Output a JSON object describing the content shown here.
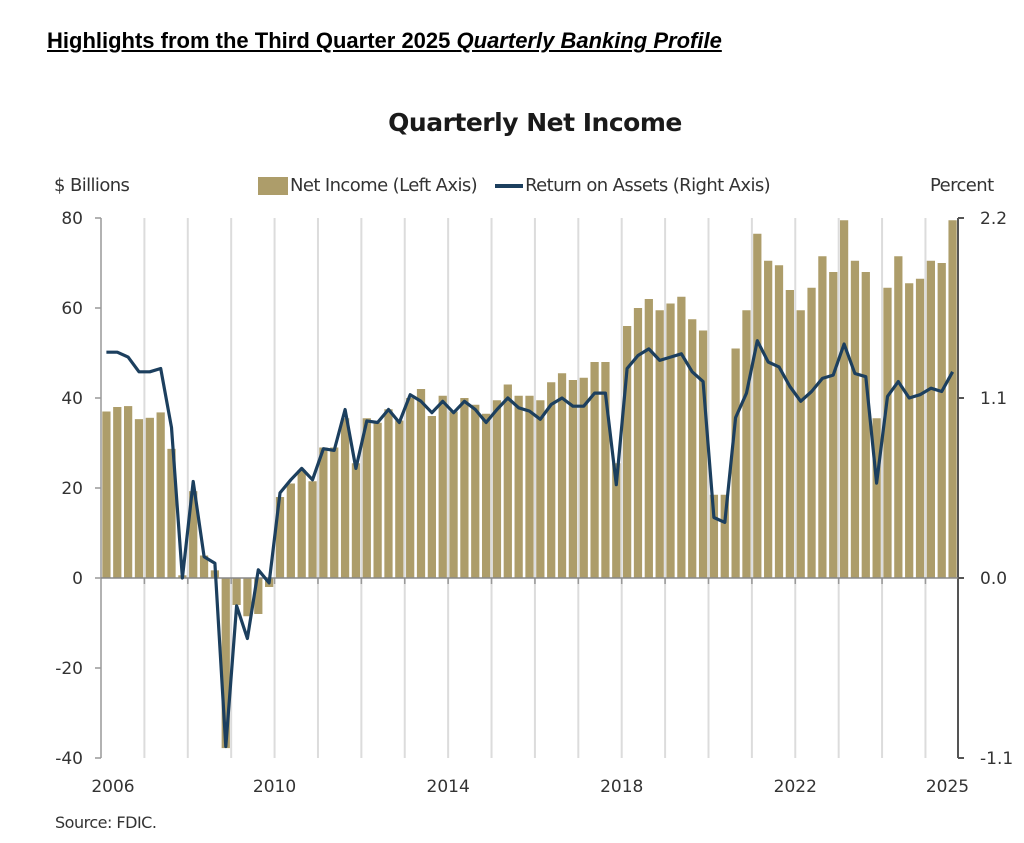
{
  "page": {
    "heading_plain": "Highlights from the Third Quarter 2025 ",
    "heading_italic": "Quarterly Banking Profile",
    "source": "Source: FDIC."
  },
  "chart_data": {
    "type": "bar",
    "title": "Quarterly Net Income",
    "left_axis_label": "$ Billions",
    "right_axis_label": "Percent",
    "legend": [
      {
        "name": "Net Income (Left Axis)",
        "kind": "bar",
        "color": "#ad9d6a"
      },
      {
        "name": "Return on Assets (Right Axis)",
        "kind": "line",
        "color": "#1c3f5e"
      }
    ],
    "legend_position": "top-center",
    "grid": "vertical-yearly",
    "ylim_left": [
      -40,
      80
    ],
    "yticks_left": [
      "80",
      "60",
      "40",
      "20",
      "0",
      "-20",
      "-40"
    ],
    "ylim_right": [
      -1.1,
      2.2
    ],
    "yticks_right": [
      "2.2",
      "1.1",
      "0.0",
      "-1.1"
    ],
    "xtick_labels": [
      {
        "label": "2006",
        "year": 2006
      },
      {
        "label": "2010",
        "year": 2010
      },
      {
        "label": "2014",
        "year": 2014
      },
      {
        "label": "2018",
        "year": 2018
      },
      {
        "label": "2022",
        "year": 2022
      },
      {
        "label": "2025",
        "year": 2025
      }
    ],
    "start_period": "2006Q1",
    "end_period": "2025Q3",
    "series": [
      {
        "name": "Net Income",
        "axis": "left",
        "values": [
          37.0,
          38.0,
          38.2,
          35.3,
          35.6,
          36.8,
          28.7,
          0.6,
          19.3,
          5.0,
          1.7,
          -37.8,
          -6.0,
          -8.5,
          -8.0,
          -2.0,
          18.0,
          21.0,
          24.0,
          21.5,
          29.0,
          29.0,
          35.5,
          25.5,
          35.5,
          34.5,
          37.5,
          35.0,
          40.0,
          42.0,
          36.0,
          40.5,
          37.0,
          40.0,
          38.5,
          36.5,
          39.5,
          43.0,
          40.5,
          40.5,
          39.5,
          43.5,
          45.5,
          44.0,
          44.5,
          48.0,
          48.0,
          25.5,
          56.0,
          60.0,
          62.0,
          59.5,
          61.0,
          62.5,
          57.5,
          55.0,
          18.5,
          18.5,
          51.0,
          59.5,
          76.5,
          70.5,
          69.5,
          64.0,
          59.5,
          64.5,
          71.5,
          68.0,
          79.5,
          70.5,
          68.0,
          35.5,
          64.5,
          71.5,
          65.5,
          66.5,
          70.5,
          70.0,
          79.5
        ]
      },
      {
        "name": "Return on Assets",
        "axis": "right",
        "values": [
          1.38,
          1.38,
          1.35,
          1.26,
          1.26,
          1.28,
          0.92,
          0.0,
          0.59,
          0.13,
          0.09,
          -1.03,
          -0.17,
          -0.37,
          0.05,
          -0.03,
          0.52,
          0.6,
          0.67,
          0.6,
          0.79,
          0.78,
          1.03,
          0.67,
          0.96,
          0.95,
          1.03,
          0.95,
          1.12,
          1.08,
          1.01,
          1.08,
          1.01,
          1.08,
          1.03,
          0.95,
          1.03,
          1.1,
          1.04,
          1.02,
          0.97,
          1.06,
          1.1,
          1.05,
          1.05,
          1.13,
          1.13,
          0.57,
          1.28,
          1.36,
          1.4,
          1.33,
          1.35,
          1.37,
          1.26,
          1.2,
          0.37,
          0.34,
          0.98,
          1.13,
          1.45,
          1.32,
          1.29,
          1.17,
          1.08,
          1.14,
          1.22,
          1.24,
          1.43,
          1.25,
          1.23,
          0.58,
          1.11,
          1.2,
          1.1,
          1.12,
          1.16,
          1.14,
          1.26
        ]
      }
    ]
  }
}
